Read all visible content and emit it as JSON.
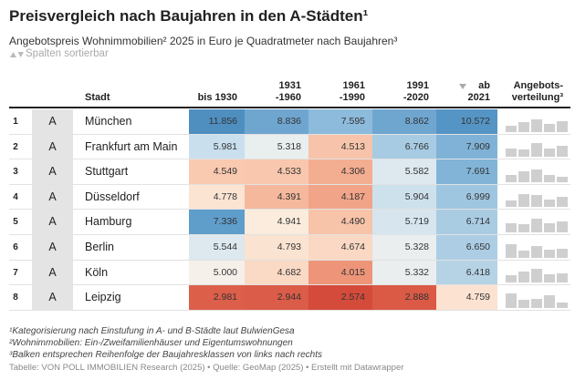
{
  "header": {
    "title": "Preisvergleich nach Baujahren in den A-Städten¹",
    "subtitle": "Angebotspreis Wohnimmobilien² 2025 in Euro je Quadratmeter nach Baujahren³",
    "sort_hint": "Spalten sortierbar"
  },
  "table": {
    "columns": [
      [
        "Stadt"
      ],
      [
        "bis 1930"
      ],
      [
        "1931",
        "-1960"
      ],
      [
        "1961",
        "-1990"
      ],
      [
        "1991",
        "-2020"
      ],
      [
        "ab",
        "2021"
      ],
      [
        "Angebots-",
        "verteilung³"
      ]
    ],
    "rows": [
      {
        "rank": "1",
        "group": "A",
        "city": "München",
        "prices": [
          "11.856",
          "8.836",
          "7.595",
          "8.862",
          "10.572"
        ],
        "colors": [
          "#4f8fc0",
          "#6fa6d0",
          "#8dbbdc",
          "#6fa6d0",
          "#5595c5"
        ],
        "distribution": [
          35,
          55,
          70,
          45,
          60
        ]
      },
      {
        "rank": "2",
        "group": "A",
        "city": "Frankfurt am Main",
        "prices": [
          "5.981",
          "5.318",
          "4.513",
          "6.766",
          "7.909"
        ],
        "colors": [
          "#c9dfee",
          "#e9eeee",
          "#f7c4ab",
          "#a7cbe3",
          "#7fb2d6"
        ],
        "distribution": [
          45,
          40,
          75,
          45,
          60
        ]
      },
      {
        "rank": "3",
        "group": "A",
        "city": "Stuttgart",
        "prices": [
          "4.549",
          "4.533",
          "4.306",
          "5.582",
          "7.691"
        ],
        "colors": [
          "#f9c9b0",
          "#f9c7ad",
          "#f3ad91",
          "#dde9ef",
          "#82b4d7"
        ],
        "distribution": [
          40,
          60,
          70,
          40,
          30
        ]
      },
      {
        "rank": "4",
        "group": "A",
        "city": "Düsseldorf",
        "prices": [
          "4.778",
          "4.391",
          "4.187",
          "5.904",
          "6.999"
        ],
        "colors": [
          "#fce4d3",
          "#f5b89c",
          "#f1a488",
          "#cde1ed",
          "#9fc6e1"
        ],
        "distribution": [
          35,
          70,
          65,
          40,
          55
        ]
      },
      {
        "rank": "5",
        "group": "A",
        "city": "Hamburg",
        "prices": [
          "7.336",
          "4.941",
          "4.490",
          "5.719",
          "6.714"
        ],
        "colors": [
          "#5f9dcb",
          "#fbecde",
          "#f7c3a9",
          "#d6e5ee",
          "#a9cce3"
        ],
        "distribution": [
          50,
          45,
          75,
          50,
          60
        ]
      },
      {
        "rank": "6",
        "group": "A",
        "city": "Berlin",
        "prices": [
          "5.544",
          "4.793",
          "4.674",
          "5.328",
          "6.650"
        ],
        "colors": [
          "#dde8ef",
          "#fbe3d2",
          "#fad8c4",
          "#eaeeee",
          "#accde4"
        ],
        "distribution": [
          75,
          40,
          65,
          45,
          50
        ]
      },
      {
        "rank": "7",
        "group": "A",
        "city": "Köln",
        "prices": [
          "5.000",
          "4.682",
          "4.015",
          "5.332",
          "6.418"
        ],
        "colors": [
          "#f5f0ea",
          "#fad9c5",
          "#ee9579",
          "#eaeeee",
          "#b6d3e6"
        ],
        "distribution": [
          40,
          60,
          75,
          45,
          50
        ]
      },
      {
        "rank": "8",
        "group": "A",
        "city": "Leipzig",
        "prices": [
          "2.981",
          "2.944",
          "2.574",
          "2.888",
          "4.759"
        ],
        "colors": [
          "#dc5f4a",
          "#db5c48",
          "#d44b3b",
          "#da5a46",
          "#fbe2d1"
        ],
        "distribution": [
          80,
          45,
          50,
          70,
          30
        ]
      }
    ]
  },
  "footnotes": [
    "¹Kategorisierung nach Einstufung in A- und B-Städte laut BulwienGesa",
    "²Wohnimmobilien: Ein-/Zweifamilienhäuser und Eigentumswohnungen",
    "³Balken entsprechen Reihenfolge der Baujahresklassen von links nach rechts"
  ],
  "source": "Tabelle: VON POLL IMMOBILIEN Research (2025) • Quelle: GeoMap (2025) • Erstellt mit Datawrapper"
}
